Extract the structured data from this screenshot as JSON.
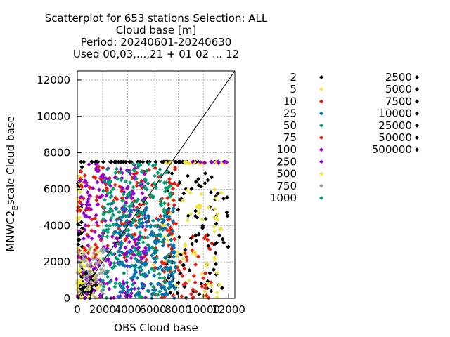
{
  "chart_data": {
    "type": "scatter",
    "title_lines": [
      "Scatterplot for  653 stations Selection: ALL",
      "Cloud base [m]",
      "Period: 20240601-20240630",
      "Used 00,03,...,21 + 01 02 ... 12"
    ],
    "xlabel": "OBS Cloud base",
    "ylabel": "MNWC2",
    "ylabel_sub": "B",
    "ylabel_rest": "scale Cloud base",
    "xlim": [
      0,
      12500
    ],
    "ylim": [
      0,
      12500
    ],
    "xticks": [
      0,
      2000,
      4000,
      6000,
      8000,
      10000,
      12000
    ],
    "yticks": [
      0,
      2000,
      4000,
      6000,
      8000,
      10000,
      12000
    ],
    "xtick_labels": [
      "0",
      "2000",
      "4000",
      "6000",
      "8000",
      "10000",
      "12000"
    ],
    "ytick_labels": [
      "0",
      "2000",
      "4000",
      "6000",
      "8000",
      "10000",
      "12000"
    ],
    "grid": true,
    "diagonal": true,
    "legend_position": "right",
    "legend": [
      {
        "label": "2",
        "color": "#000000"
      },
      {
        "label": "5",
        "color": "#f0e442"
      },
      {
        "label": "10",
        "color": "#e51e10"
      },
      {
        "label": "25",
        "color": "#0072b2"
      },
      {
        "label": "50",
        "color": "#009e73"
      },
      {
        "label": "75",
        "color": "#e51e10"
      },
      {
        "label": "100",
        "color": "#9400d3"
      },
      {
        "label": "250",
        "color": "#9400d3"
      },
      {
        "label": "500",
        "color": "#f0e442"
      },
      {
        "label": "750",
        "color": "#a0a0a0"
      },
      {
        "label": "1000",
        "color": "#009e73"
      },
      {
        "label": "2500",
        "color": "#000000"
      },
      {
        "label": "5000",
        "color": "#000000"
      },
      {
        "label": "7500",
        "color": "#000000"
      },
      {
        "label": "10000",
        "color": "#000000"
      },
      {
        "label": "25000",
        "color": "#000000"
      },
      {
        "label": "50000",
        "color": "#000000"
      },
      {
        "label": "500000",
        "color": "#000000"
      }
    ],
    "series": [
      {
        "color": "#000000",
        "clusters": [
          {
            "x": [
              0,
              1500
            ],
            "y": [
              0,
              1500
            ],
            "n": 60
          },
          {
            "x": [
              0,
              12000
            ],
            "y": [
              7500,
              7500
            ],
            "n": 60
          },
          {
            "x": [
              7000,
              12000
            ],
            "y": [
              0,
              7000
            ],
            "n": 90
          },
          {
            "x": [
              0,
              400
            ],
            "y": [
              0,
              7500
            ],
            "n": 30
          }
        ]
      },
      {
        "color": "#f0e442",
        "clusters": [
          {
            "x": [
              7000,
              12000
            ],
            "y": [
              7400,
              7500
            ],
            "n": 25
          },
          {
            "x": [
              6000,
              11500
            ],
            "y": [
              0,
              6000
            ],
            "n": 70
          },
          {
            "x": [
              0,
              1800
            ],
            "y": [
              0,
              3000
            ],
            "n": 40
          },
          {
            "x": [
              0,
              400
            ],
            "y": [
              0,
              7500
            ],
            "n": 30
          }
        ]
      },
      {
        "color": "#e51e10",
        "clusters": [
          {
            "x": [
              0,
              8000
            ],
            "y": [
              2000,
              7400
            ],
            "n": 180
          },
          {
            "x": [
              6000,
              11000
            ],
            "y": [
              0,
              3500
            ],
            "n": 60
          }
        ]
      },
      {
        "color": "#9400d3",
        "clusters": [
          {
            "x": [
              0,
              5500
            ],
            "y": [
              0,
              7400
            ],
            "n": 220
          },
          {
            "x": [
              9000,
              12000
            ],
            "y": [
              7450,
              7500
            ],
            "n": 10
          }
        ]
      },
      {
        "color": "#009e73",
        "clusters": [
          {
            "x": [
              2000,
              7500
            ],
            "y": [
              0,
              7400
            ],
            "n": 240
          }
        ]
      },
      {
        "color": "#0072b2",
        "clusters": [
          {
            "x": [
              3000,
              7800
            ],
            "y": [
              0,
              5000
            ],
            "n": 160
          }
        ]
      },
      {
        "color": "#a0a0a0",
        "clusters": [
          {
            "x": [
              0,
              2200
            ],
            "y": [
              0,
              2800
            ],
            "n": 50
          }
        ]
      }
    ]
  }
}
